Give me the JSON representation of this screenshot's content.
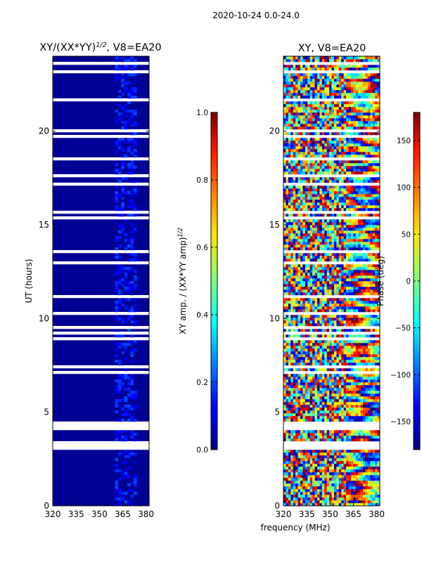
{
  "suptitle": "2020-10-24 0.0-24.0",
  "chart_data": [
    {
      "type": "heatmap",
      "title": "XY/(XX*YY)",
      "title_sup": "1/2",
      "title_suffix": ", V8=EA20",
      "xlabel": "",
      "ylabel": "UT (hours)",
      "xlim": [
        320,
        382
      ],
      "ylim": [
        0,
        24
      ],
      "xticks": [
        320,
        335,
        350,
        365,
        380
      ],
      "yticks": [
        0,
        5,
        10,
        15,
        20
      ],
      "colormap": "jet",
      "colorbar": {
        "label": "XY amp. / (XX*YY amp)",
        "label_sup": "1/2",
        "range": [
          0.0,
          1.0
        ],
        "ticks": [
          "0.0",
          "0.2",
          "0.4",
          "0.6",
          "0.8",
          "1.0"
        ],
        "tick_values": [
          0.0,
          0.2,
          0.4,
          0.6,
          0.8,
          1.0
        ]
      },
      "background_value": 0.02,
      "enhanced_band_mhz": [
        360,
        374
      ],
      "gaps_hours": [
        [
          3.2,
          3.45
        ],
        [
          4.0,
          4.55
        ],
        [
          19.6,
          19.8
        ],
        [
          10.2,
          10.3
        ],
        [
          13.5,
          13.65
        ],
        [
          17.6,
          17.7
        ],
        [
          8.9,
          9.0
        ],
        [
          23.2,
          23.27
        ]
      ]
    },
    {
      "type": "heatmap",
      "title": "XY, V8=EA20",
      "xlabel": "frequency (MHz)",
      "ylabel": "",
      "xlim": [
        320,
        382
      ],
      "ylim": [
        0,
        24
      ],
      "xticks": [
        320,
        335,
        350,
        365,
        380
      ],
      "yticks": [
        0,
        5,
        10,
        15,
        20
      ],
      "colormap": "jet",
      "colorbar": {
        "label": "Phase (deg)",
        "range": [
          -180,
          180
        ],
        "ticks": [
          "−150",
          "−100",
          "−50",
          "0",
          "50",
          "100",
          "150"
        ],
        "tick_values": [
          -150,
          -100,
          -50,
          0,
          50,
          100,
          150
        ]
      },
      "gaps_hours": [
        [
          3.2,
          3.45
        ],
        [
          4.0,
          4.55
        ],
        [
          19.6,
          19.8
        ],
        [
          10.2,
          10.3
        ],
        [
          13.5,
          13.65
        ],
        [
          17.6,
          17.7
        ],
        [
          8.9,
          9.0
        ],
        [
          23.2,
          23.27
        ]
      ]
    }
  ]
}
